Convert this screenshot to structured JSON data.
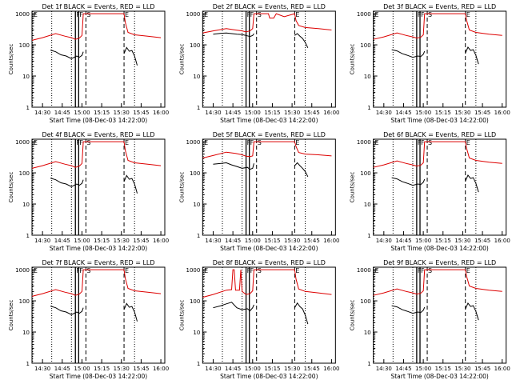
{
  "colors": {
    "events": "#000000",
    "lld": "#dd0000",
    "axis": "#000000",
    "bg": "#ffffff"
  },
  "chart_data": {
    "type": "line",
    "ylabel": "Counts/sec",
    "xlabel": "Start Time (08-Dec-03 14:22:00)",
    "x_ticks": [
      "14:30",
      "14:45",
      "15:00",
      "15:15",
      "15:30",
      "15:45",
      "16:00"
    ],
    "x_tick_minutes": [
      30,
      45,
      60,
      75,
      90,
      105,
      120
    ],
    "xlim_minutes": [
      22,
      123
    ],
    "yscale": "log",
    "ylim": [
      1,
      1200
    ],
    "y_ticks": [
      "1",
      "10",
      "100",
      "1000"
    ],
    "markers": [
      {
        "label": "E",
        "style": "dotted",
        "minute": 22.5
      },
      {
        "label": "F",
        "style": "solid",
        "minute": 55
      },
      {
        "label": "F",
        "style": "solid",
        "minute": 57.5
      },
      {
        "label": "S",
        "style": "dashed",
        "minute": 63
      },
      {
        "label": "E",
        "style": "dashed",
        "minute": 92
      }
    ],
    "extra_dotted_minutes": [
      37,
      52,
      100
    ],
    "panels": [
      {
        "title": "Det 1f BLACK = Events, RED = LLD",
        "lld": {
          "x": [
            22,
            30,
            40,
            47,
            52,
            55,
            58,
            60,
            61,
            63,
            92,
            93,
            95,
            100,
            110,
            120
          ],
          "y": [
            140,
            170,
            230,
            190,
            170,
            150,
            165,
            200,
            1000,
            1000,
            1000,
            520,
            250,
            210,
            190,
            170
          ]
        },
        "events": {
          "x": [
            36,
            40,
            44,
            48,
            52,
            56,
            58,
            60,
            61
          ],
          "y": [
            68,
            60,
            48,
            44,
            36,
            44,
            40,
            46,
            60
          ]
        },
        "events2": {
          "x": [
            92,
            94,
            96,
            98,
            100,
            102
          ],
          "y": [
            52,
            82,
            62,
            66,
            44,
            22
          ]
        }
      },
      {
        "title": "Det 2f BLACK = Events, RED = LLD",
        "lld": {
          "x": [
            22,
            30,
            40,
            47,
            52,
            55,
            58,
            60,
            61,
            63,
            72,
            73,
            76,
            78,
            84,
            92,
            93,
            95,
            100,
            110,
            120
          ],
          "y": [
            240,
            280,
            330,
            300,
            280,
            260,
            280,
            330,
            1000,
            1000,
            1000,
            720,
            720,
            1000,
            800,
            1000,
            600,
            420,
            360,
            330,
            300
          ]
        },
        "events": {
          "x": [
            30,
            36,
            40,
            44,
            48,
            52,
            56,
            58,
            60,
            61
          ],
          "y": [
            220,
            235,
            240,
            230,
            220,
            215,
            195,
            185,
            200,
            230
          ]
        },
        "events2": {
          "x": [
            92,
            94,
            96,
            98,
            100,
            102
          ],
          "y": [
            200,
            230,
            190,
            160,
            120,
            80
          ]
        }
      },
      {
        "title": "Det 3f BLACK = Events, RED = LLD",
        "lld": {
          "x": [
            22,
            30,
            40,
            47,
            52,
            55,
            58,
            60,
            61,
            63,
            92,
            93,
            95,
            100,
            110,
            120
          ],
          "y": [
            150,
            180,
            240,
            200,
            180,
            165,
            175,
            210,
            1000,
            1000,
            1000,
            600,
            300,
            250,
            220,
            200
          ]
        },
        "events": {
          "x": [
            36,
            40,
            44,
            48,
            52,
            56,
            58,
            60,
            61
          ],
          "y": [
            70,
            64,
            52,
            46,
            40,
            44,
            42,
            50,
            62
          ]
        },
        "events2": {
          "x": [
            92,
            94,
            96,
            98,
            100,
            102
          ],
          "y": [
            54,
            84,
            66,
            70,
            46,
            24
          ]
        }
      },
      {
        "title": "Det 4f BLACK = Events, RED = LLD",
        "lld": {
          "x": [
            22,
            30,
            40,
            47,
            52,
            55,
            58,
            60,
            61,
            63,
            92,
            93,
            95,
            100,
            110,
            120
          ],
          "y": [
            140,
            170,
            230,
            190,
            170,
            150,
            165,
            200,
            1000,
            1000,
            1000,
            520,
            250,
            210,
            190,
            170
          ]
        },
        "events": {
          "x": [
            36,
            40,
            44,
            48,
            52,
            56,
            58,
            60,
            61
          ],
          "y": [
            68,
            60,
            48,
            44,
            36,
            44,
            40,
            46,
            60
          ]
        },
        "events2": {
          "x": [
            92,
            94,
            96,
            98,
            100,
            102
          ],
          "y": [
            52,
            82,
            62,
            66,
            44,
            22
          ]
        }
      },
      {
        "title": "Det 5f BLACK = Events, RED = LLD",
        "lld": {
          "x": [
            22,
            30,
            40,
            47,
            52,
            55,
            58,
            60,
            61,
            63,
            92,
            93,
            95,
            100,
            110,
            120
          ],
          "y": [
            300,
            360,
            460,
            420,
            380,
            340,
            330,
            350,
            1000,
            1000,
            1000,
            700,
            450,
            400,
            380,
            350
          ]
        },
        "events": {
          "x": [
            30,
            36,
            40,
            44,
            48,
            52,
            56,
            58,
            60,
            61
          ],
          "y": [
            190,
            200,
            210,
            180,
            160,
            140,
            150,
            130,
            140,
            200
          ]
        },
        "events2": {
          "x": [
            92,
            94,
            96,
            98,
            100,
            102
          ],
          "y": [
            170,
            210,
            170,
            140,
            110,
            75
          ]
        }
      },
      {
        "title": "Det 6f BLACK = Events, RED = LLD",
        "lld": {
          "x": [
            22,
            30,
            40,
            47,
            52,
            55,
            58,
            60,
            61,
            63,
            92,
            93,
            95,
            100,
            110,
            120
          ],
          "y": [
            150,
            180,
            240,
            200,
            180,
            165,
            175,
            210,
            1000,
            1000,
            1000,
            600,
            300,
            250,
            220,
            200
          ]
        },
        "events": {
          "x": [
            36,
            40,
            44,
            48,
            52,
            56,
            58,
            60,
            61
          ],
          "y": [
            70,
            64,
            52,
            46,
            40,
            44,
            42,
            50,
            62
          ]
        },
        "events2": {
          "x": [
            92,
            94,
            96,
            98,
            100,
            102
          ],
          "y": [
            54,
            84,
            66,
            70,
            46,
            24
          ]
        }
      },
      {
        "title": "Det 7f BLACK = Events, RED = LLD",
        "lld": {
          "x": [
            22,
            30,
            40,
            47,
            52,
            55,
            58,
            60,
            61,
            63,
            92,
            93,
            95,
            100,
            110,
            120
          ],
          "y": [
            140,
            170,
            230,
            190,
            170,
            150,
            165,
            200,
            1000,
            1000,
            1000,
            520,
            250,
            210,
            190,
            170
          ]
        },
        "events": {
          "x": [
            36,
            40,
            44,
            48,
            52,
            56,
            58,
            60,
            61
          ],
          "y": [
            68,
            60,
            48,
            44,
            36,
            44,
            40,
            46,
            60
          ]
        },
        "events2": {
          "x": [
            92,
            94,
            96,
            98,
            100,
            102
          ],
          "y": [
            52,
            82,
            62,
            66,
            44,
            22
          ]
        }
      },
      {
        "title": "Det 8f BLACK = Events, RED = LLD",
        "lld": {
          "x": [
            22,
            30,
            40,
            44,
            45,
            46,
            47,
            50,
            51,
            52,
            55,
            58,
            60,
            61,
            63,
            92,
            93,
            95,
            100,
            110,
            120
          ],
          "y": [
            130,
            160,
            220,
            230,
            1000,
            1000,
            220,
            220,
            1000,
            200,
            160,
            170,
            210,
            1000,
            1000,
            1000,
            500,
            240,
            200,
            180,
            160
          ]
        },
        "events": {
          "x": [
            30,
            36,
            40,
            44,
            48,
            52,
            56,
            58,
            60,
            61
          ],
          "y": [
            60,
            70,
            80,
            90,
            60,
            52,
            56,
            48,
            60,
            75
          ]
        },
        "events2": {
          "x": [
            92,
            94,
            96,
            98,
            100,
            102
          ],
          "y": [
            60,
            85,
            65,
            55,
            35,
            18
          ]
        }
      },
      {
        "title": "Det 9f BLACK = Events, RED = LLD",
        "lld": {
          "x": [
            22,
            30,
            40,
            47,
            52,
            55,
            58,
            60,
            61,
            63,
            92,
            93,
            95,
            100,
            110,
            120
          ],
          "y": [
            150,
            180,
            240,
            200,
            180,
            165,
            175,
            210,
            1000,
            1000,
            1000,
            600,
            300,
            250,
            220,
            200
          ]
        },
        "events": {
          "x": [
            36,
            40,
            44,
            48,
            52,
            56,
            58,
            60,
            61
          ],
          "y": [
            70,
            64,
            52,
            46,
            40,
            44,
            42,
            50,
            62
          ]
        },
        "events2": {
          "x": [
            92,
            94,
            96,
            98,
            100,
            102
          ],
          "y": [
            54,
            84,
            66,
            70,
            46,
            24
          ]
        }
      }
    ]
  }
}
